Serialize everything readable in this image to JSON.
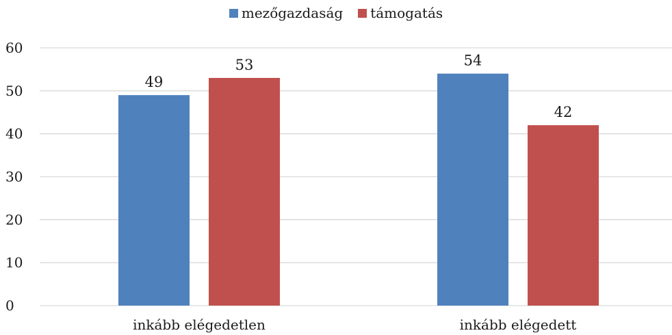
{
  "chart_data": {
    "type": "bar",
    "categories": [
      "inkább elégedetlen",
      "inkább elégedett"
    ],
    "series": [
      {
        "name": "mezőgazdaság",
        "color": "#4f81bd",
        "values": [
          49,
          54
        ]
      },
      {
        "name": "támogatás",
        "color": "#c0504d",
        "values": [
          53,
          42
        ]
      }
    ],
    "ylim": [
      0,
      60
    ],
    "yticks": [
      "0",
      "10",
      "20",
      "30",
      "40",
      "50",
      "60"
    ],
    "data_labels": [
      [
        "49",
        "54"
      ],
      [
        "53",
        "42"
      ]
    ],
    "grid": true,
    "legend_position": "top"
  }
}
